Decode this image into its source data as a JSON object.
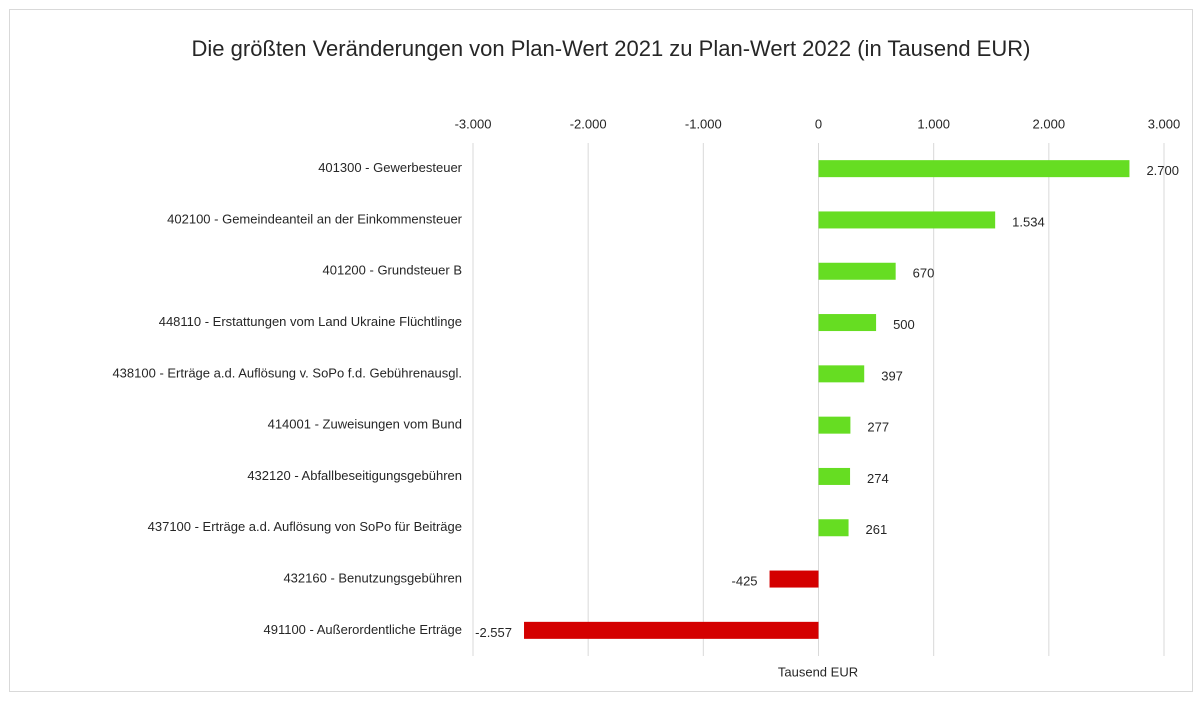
{
  "chart_data": {
    "type": "hbar",
    "title": "Die größten Veränderungen von Plan-Wert 2021 zu Plan-Wert 2022 (in Tausend EUR)",
    "xlabel": "Tausend EUR",
    "categories": [
      "401300 - Gewerbesteuer",
      "402100 - Gemeindeanteil an der Einkommensteuer",
      "401200 - Grundsteuer B",
      "448110 - Erstattungen vom Land Ukraine Flüchtlinge",
      "438100 - Erträge a.d. Auflösung v. SoPo f.d. Gebührenausgl.",
      "414001 - Zuweisungen vom Bund",
      "432120 - Abfallbeseitigungsgebühren",
      "437100 - Erträge a.d. Auflösung von SoPo für Beiträge",
      "432160 - Benutzungsgebühren",
      "491100 - Außerordentliche Erträge"
    ],
    "values": [
      2700,
      1534,
      670,
      500,
      397,
      277,
      274,
      261,
      -425,
      -2557
    ],
    "value_labels": [
      "2.700",
      "1.534",
      "670",
      "500",
      "397",
      "277",
      "274",
      "261",
      "-425",
      "-2.557"
    ],
    "colors": [
      "#66dd22",
      "#66dd22",
      "#66dd22",
      "#66dd22",
      "#66dd22",
      "#66dd22",
      "#66dd22",
      "#66dd22",
      "#d40000",
      "#d40000"
    ],
    "xlim": [
      -3000,
      3000
    ],
    "xticks": [
      {
        "value": -3000,
        "label": "-3.000"
      },
      {
        "value": -2000,
        "label": "-2.000"
      },
      {
        "value": -1000,
        "label": "-1.000"
      },
      0,
      {
        "value": 1000,
        "label": "1.000"
      },
      {
        "value": 2000,
        "label": "2.000"
      },
      {
        "value": 3000,
        "label": "3.000"
      }
    ],
    "grid": true
  }
}
